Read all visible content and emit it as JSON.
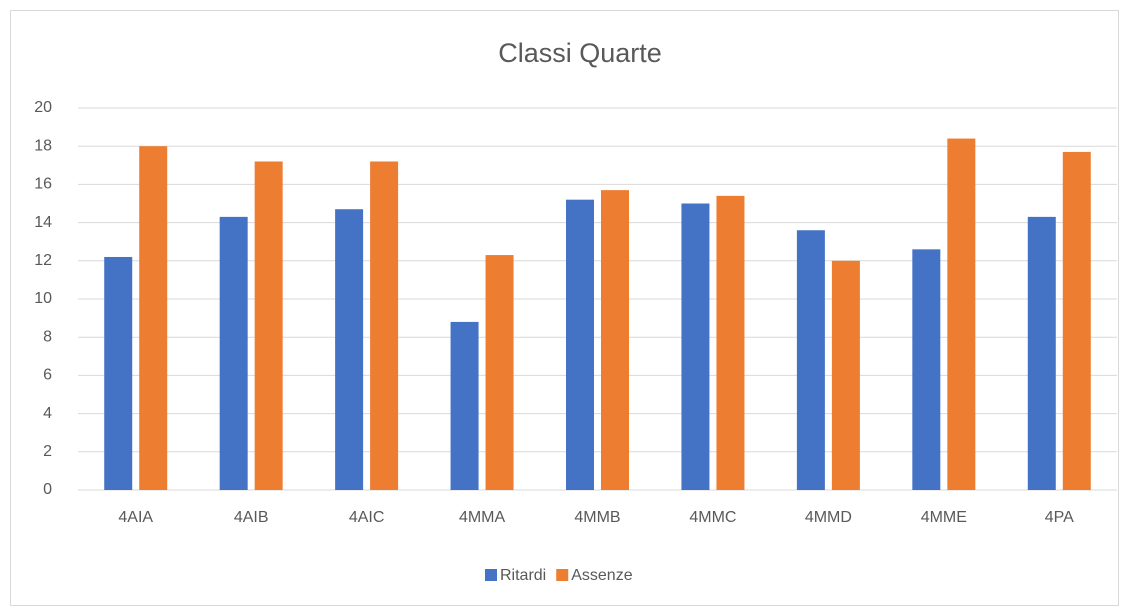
{
  "chart_data": {
    "type": "bar",
    "title": "Classi Quarte",
    "categories": [
      "4AIA",
      "4AIB",
      "4AIC",
      "4MMA",
      "4MMB",
      "4MMC",
      "4MMD",
      "4MME",
      "4PA"
    ],
    "series": [
      {
        "name": "Ritardi",
        "color": "#4472c4",
        "values": [
          12.2,
          14.3,
          14.7,
          8.8,
          15.2,
          15.0,
          13.6,
          12.6,
          14.3
        ]
      },
      {
        "name": "Assenze",
        "color": "#ed7d31",
        "values": [
          18.0,
          17.2,
          17.2,
          12.3,
          15.7,
          15.4,
          12.0,
          18.4,
          17.7
        ]
      }
    ],
    "ylim": [
      0,
      20
    ],
    "yticks": [
      0,
      2,
      4,
      6,
      8,
      10,
      12,
      14,
      16,
      18,
      20
    ],
    "grid": true,
    "legend": "bottom"
  }
}
